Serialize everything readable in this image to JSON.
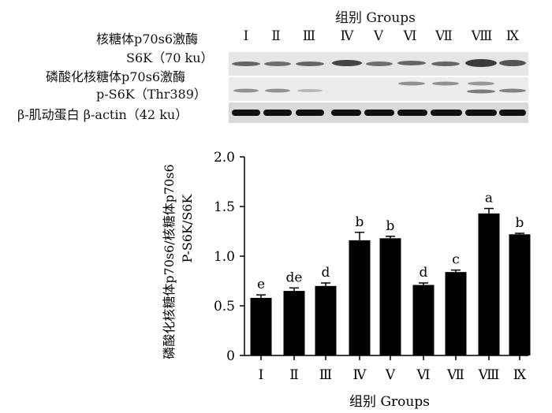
{
  "blot_panel": {
    "top_axis_title": "组别 Groups",
    "group_labels": [
      "Ⅰ",
      "Ⅱ",
      "Ⅲ",
      "Ⅳ",
      "Ⅴ",
      "Ⅵ",
      "Ⅶ",
      "Ⅷ",
      "Ⅸ"
    ],
    "rows": [
      {
        "label_cn": "核糖体p70s6激酶",
        "label_en": "S6K（70 ku）"
      },
      {
        "label_cn": "磷酸化核糖体p70s6激酶",
        "label_en": "p-S6K（Thr389）"
      },
      {
        "label_cn": "β-肌动蛋白 β-actin（42 ku）",
        "label_en": ""
      }
    ]
  },
  "chart_data": {
    "type": "bar",
    "categories": [
      "Ⅰ",
      "Ⅱ",
      "Ⅲ",
      "Ⅳ",
      "Ⅴ",
      "Ⅵ",
      "Ⅶ",
      "Ⅷ",
      "Ⅸ"
    ],
    "values": [
      0.58,
      0.65,
      0.7,
      1.16,
      1.18,
      0.71,
      0.84,
      1.43,
      1.22
    ],
    "errors": [
      0.03,
      0.03,
      0.03,
      0.08,
      0.02,
      0.02,
      0.02,
      0.05,
      0.01
    ],
    "significance_letters": [
      "e",
      "de",
      "d",
      "b",
      "b",
      "d",
      "c",
      "a",
      "b"
    ],
    "xlabel": "组别 Groups",
    "ylabel_line1": "磷酸化核糖体p70s6/核糖体p70s6",
    "ylabel_line2": "P-S6K/S6K",
    "ylim": [
      0,
      2.0
    ],
    "yticks": [
      "0",
      "0.5",
      "1.0",
      "1.5",
      "2.0"
    ],
    "bar_color": "#000000"
  }
}
